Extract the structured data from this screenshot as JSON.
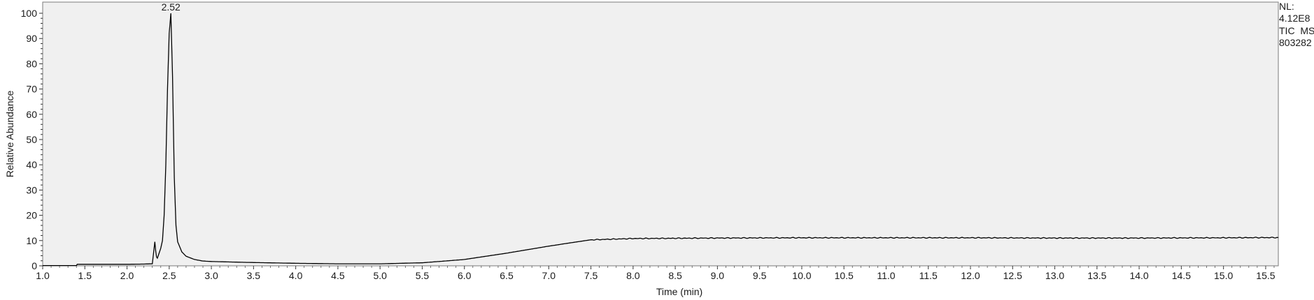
{
  "header_info": {
    "nl_label": "NL:",
    "nl_value": "4.12E8",
    "scan_filter": "TIC  MS",
    "file_id": "803282"
  },
  "chart_data": {
    "type": "line",
    "xlabel": "Time (min)",
    "ylabel": "Relative Abundance",
    "xlim": [
      1.0,
      15.65
    ],
    "ylim": [
      0,
      100
    ],
    "x_ticks": [
      "1.0",
      "1.5",
      "2.0",
      "2.5",
      "3.0",
      "3.5",
      "4.0",
      "4.5",
      "5.0",
      "5.5",
      "6.0",
      "6.5",
      "7.0",
      "7.5",
      "8.0",
      "8.5",
      "9.0",
      "9.5",
      "10.0",
      "10.5",
      "11.0",
      "11.5",
      "12.0",
      "12.5",
      "13.0",
      "13.5",
      "14.0",
      "14.5",
      "15.0",
      "15.5"
    ],
    "y_ticks": [
      "0",
      "10",
      "20",
      "30",
      "40",
      "50",
      "60",
      "70",
      "80",
      "90",
      "100"
    ],
    "peak_labels": [
      {
        "x": 2.52,
        "y": 100,
        "text": "2.52"
      }
    ],
    "series": [
      {
        "x": [
          1.0,
          1.2,
          1.4,
          1.41,
          1.6,
          1.8,
          2.0,
          2.2,
          2.3,
          2.33,
          2.34,
          2.35,
          2.36,
          2.38,
          2.4,
          2.42,
          2.44,
          2.46,
          2.48,
          2.5,
          2.52,
          2.54,
          2.56,
          2.58,
          2.6,
          2.65,
          2.7,
          2.8,
          2.9,
          3.0,
          3.5,
          4.0,
          4.5,
          5.0,
          5.5,
          6.0,
          6.5,
          7.0,
          7.5,
          8.0,
          9.0,
          10.0,
          11.0,
          12.0,
          13.0,
          14.0,
          15.0,
          15.65
        ],
        "y": [
          0.1,
          0.1,
          0.1,
          0.6,
          0.6,
          0.6,
          0.6,
          0.7,
          0.8,
          9.5,
          6.0,
          3.5,
          3.0,
          5.0,
          7.0,
          10.0,
          20.0,
          40.0,
          70.0,
          92.0,
          100.0,
          75.0,
          35.0,
          16.0,
          9.5,
          5.5,
          3.8,
          2.5,
          1.9,
          1.7,
          1.3,
          1.0,
          0.8,
          0.8,
          1.2,
          2.5,
          5.0,
          7.8,
          10.3,
          10.8,
          11.0,
          11.1,
          11.1,
          11.1,
          11.0,
          11.0,
          11.1,
          11.2
        ]
      }
    ]
  }
}
